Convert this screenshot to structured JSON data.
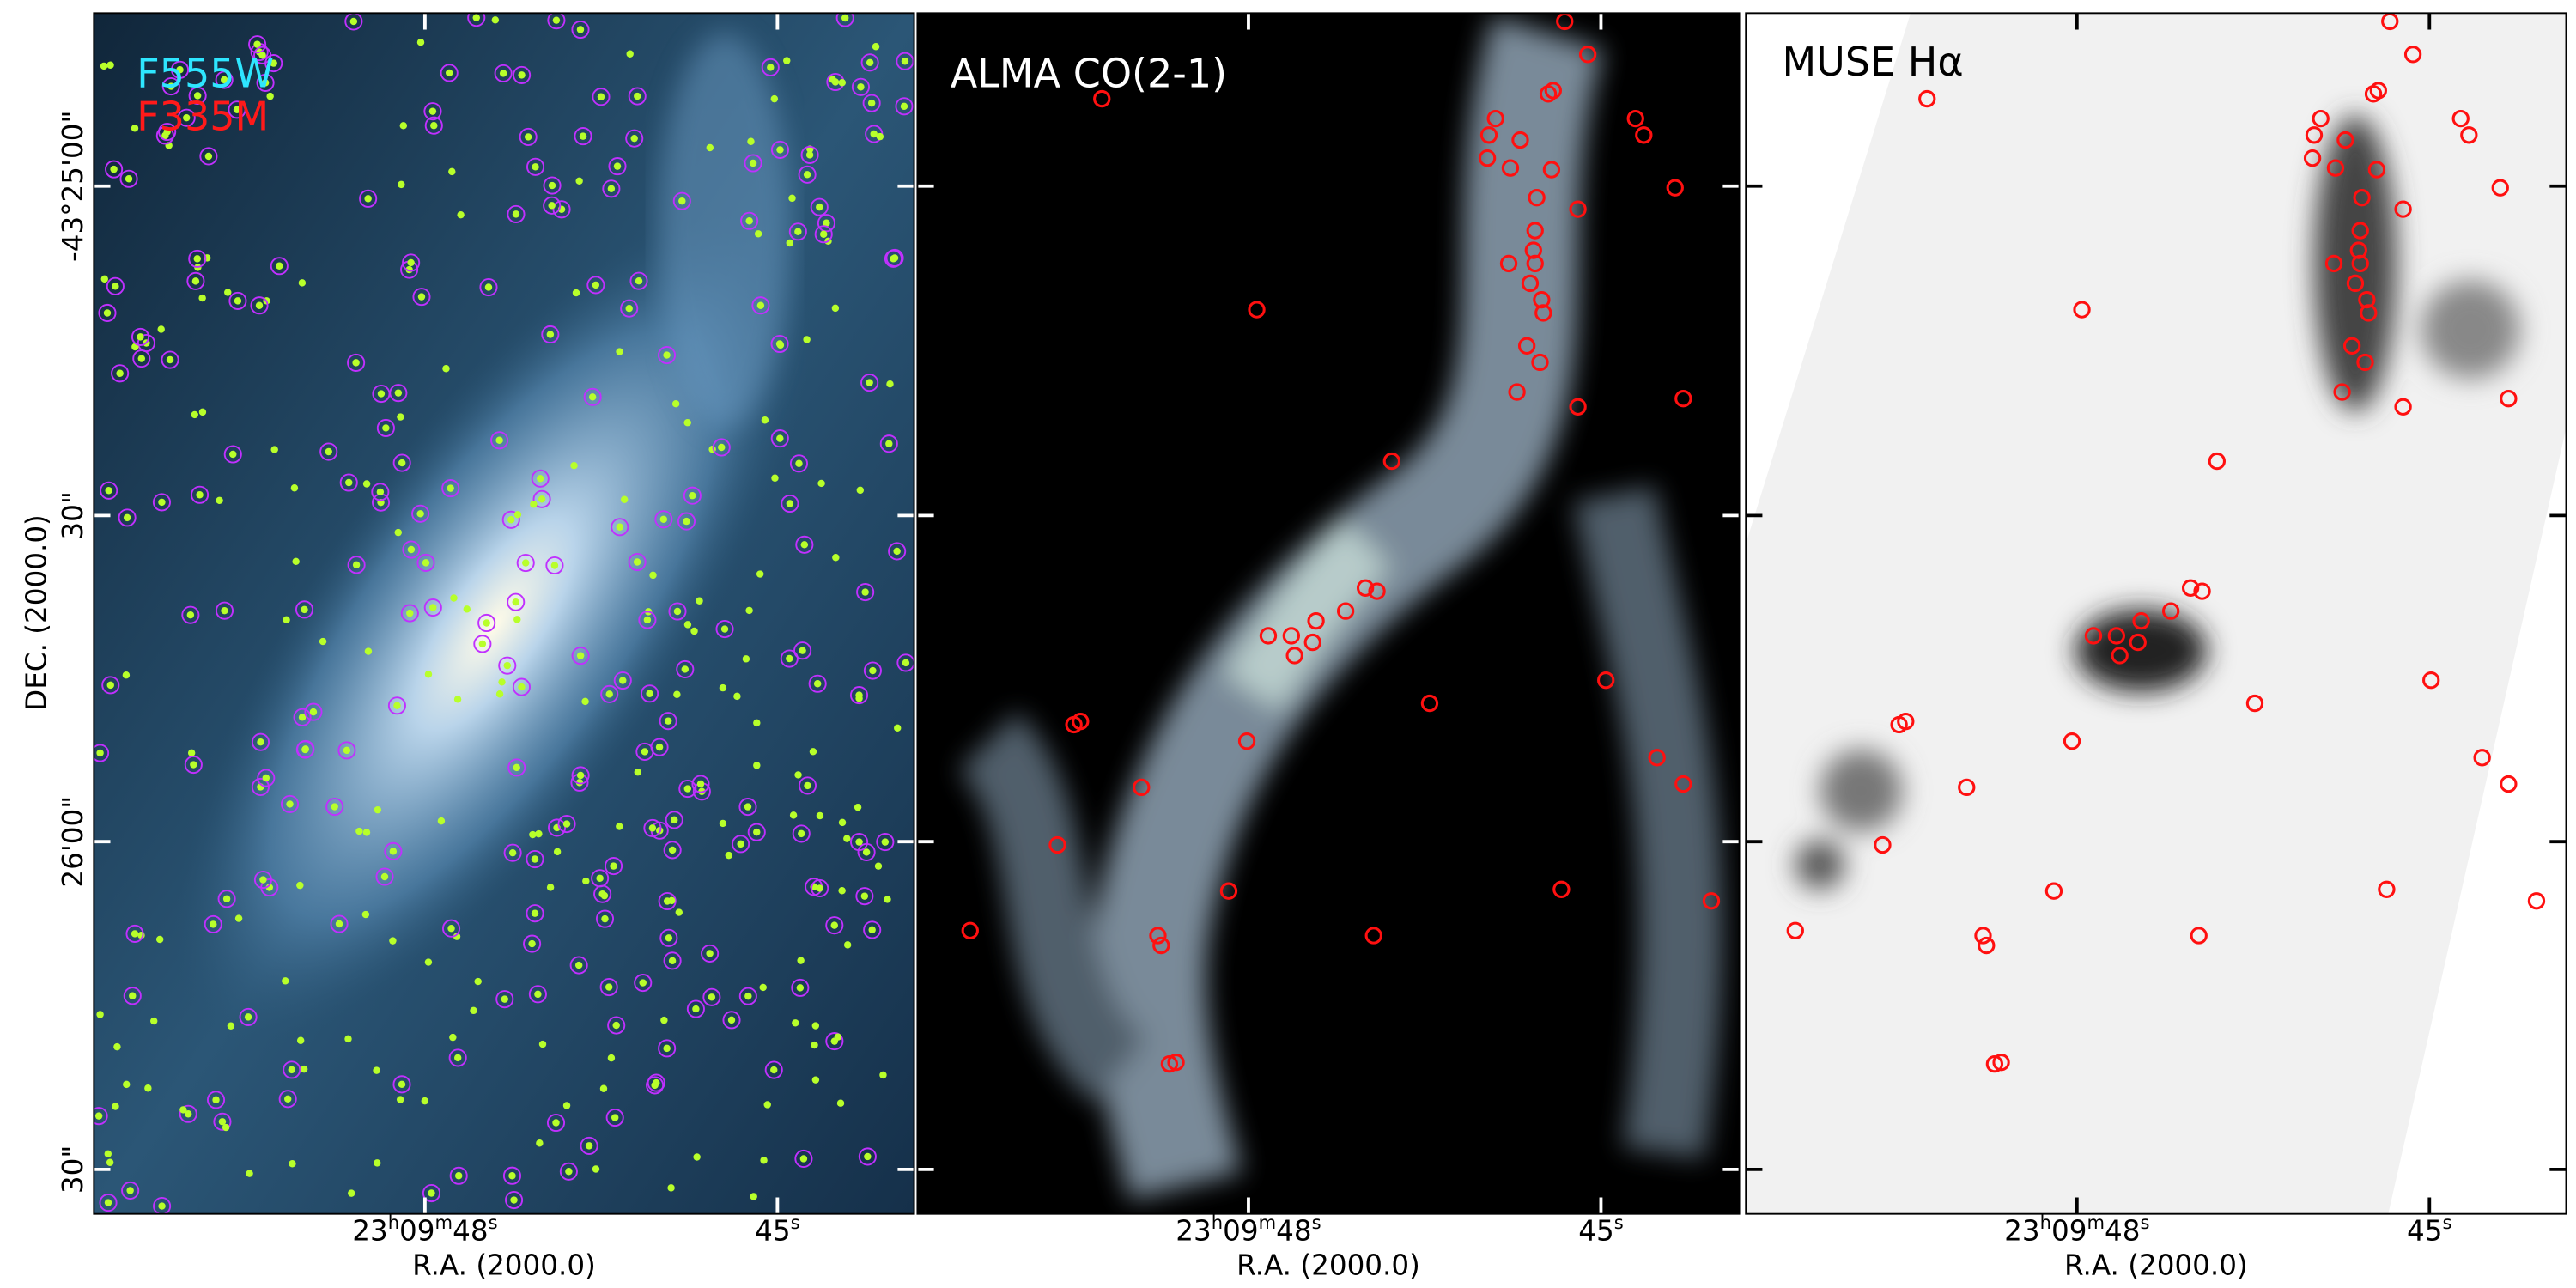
{
  "panels": [
    {
      "labels": [
        "F555W",
        "F335M"
      ]
    },
    {
      "label": "ALMA CO(2-1)"
    },
    {
      "label": "MUSE Hα"
    }
  ],
  "x_axis": {
    "label": "R.A. (2000.0)",
    "ticks": [
      {
        "parts": [
          "23",
          "h",
          "09",
          "m",
          "48",
          "s"
        ]
      },
      {
        "parts": [
          "45",
          "s"
        ]
      }
    ]
  },
  "y_axis": {
    "label": "DEC. (2000.0)",
    "ticks": [
      "-43°25'00\"",
      "30\"",
      "26'00\"",
      "30\""
    ]
  }
}
